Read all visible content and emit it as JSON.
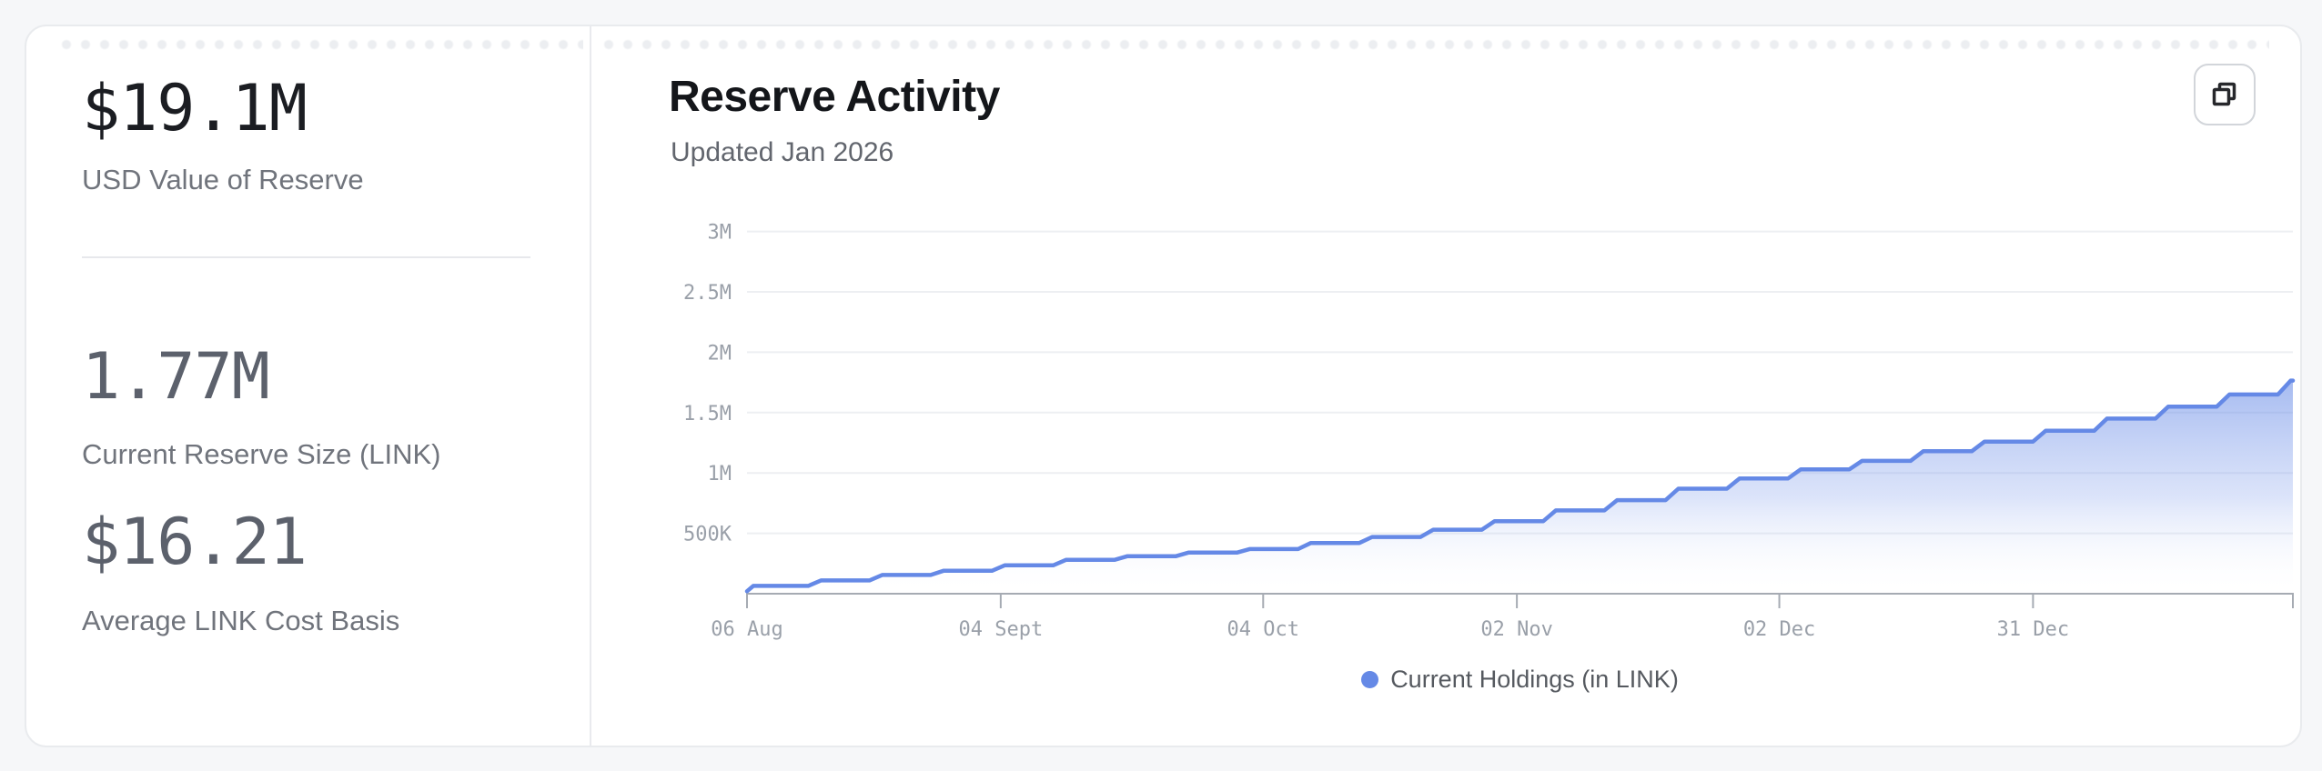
{
  "page": {
    "background": "#f6f7f9",
    "card_background": "#ffffff"
  },
  "left_panel": {
    "metrics": [
      {
        "value": "$19.1M",
        "label": "USD Value of Reserve"
      },
      {
        "value": "1.77M",
        "label": "Current Reserve Size (LINK)"
      },
      {
        "value": "$16.21",
        "label": "Average LINK Cost Basis"
      }
    ]
  },
  "chart_panel": {
    "title": "Reserve Activity",
    "subtitle": "Updated Jan 2026",
    "copy_button_icon": "copy-icon",
    "legend": {
      "label": "Current Holdings (in LINK)",
      "dot_color": "#6589e6"
    }
  },
  "chart_data": {
    "type": "area",
    "title": "Reserve Activity",
    "series_name": "Current Holdings (in LINK)",
    "x": [
      "Aug 06",
      "Aug 13",
      "Aug 20",
      "Aug 27",
      "Sep 03",
      "Sep 10",
      "Sep 17",
      "Sep 24",
      "Oct 01",
      "Oct 08",
      "Oct 15",
      "Oct 22",
      "Oct 29",
      "Nov 05",
      "Nov 12",
      "Nov 19",
      "Nov 26",
      "Dec 03",
      "Dec 10",
      "Dec 17",
      "Dec 24",
      "Dec 31",
      "Jan 07",
      "Jan 14",
      "Jan 21",
      "Jan 28"
    ],
    "values": [
      65000,
      110000,
      155000,
      190000,
      235000,
      280000,
      310000,
      340000,
      370000,
      420000,
      470000,
      530000,
      600000,
      690000,
      775000,
      870000,
      955000,
      1030000,
      1100000,
      1180000,
      1260000,
      1350000,
      1450000,
      1550000,
      1650000,
      1765000
    ],
    "ylim": [
      0,
      3200000
    ],
    "y_ticks": [
      {
        "value": 500000,
        "label": "500K"
      },
      {
        "value": 1000000,
        "label": "1M"
      },
      {
        "value": 1500000,
        "label": "1.5M"
      },
      {
        "value": 2000000,
        "label": "2M"
      },
      {
        "value": 2500000,
        "label": "2.5M"
      },
      {
        "value": 3000000,
        "label": "3M"
      }
    ],
    "x_ticks": [
      {
        "day": 0,
        "label": "06 Aug"
      },
      {
        "day": 29,
        "label": "04 Sept"
      },
      {
        "day": 59,
        "label": "04 Oct"
      },
      {
        "day": 88,
        "label": "02 Nov"
      },
      {
        "day": 118,
        "label": "02 Dec"
      },
      {
        "day": 147,
        "label": "31 Dec"
      }
    ],
    "grid": true,
    "legend_position": "bottom",
    "colors": {
      "line": "#6589e6",
      "fill_top": "rgba(101,137,230,0.58)",
      "fill_mid": "rgba(137,164,237,0.30)",
      "fill_bottom": "rgba(255,255,255,0)",
      "gridline": "#edeff2",
      "axis": "#a6abb3",
      "axis_text": "#9aa0a9"
    }
  }
}
